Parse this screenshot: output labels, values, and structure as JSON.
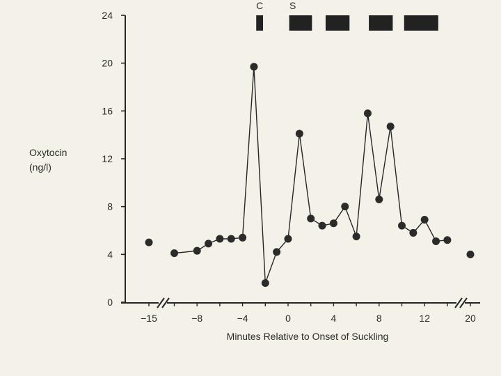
{
  "chart_data": {
    "type": "line",
    "xlabel": "Minutes Relative to Onset of Suckling",
    "ylabel_line1": "Oxytocin",
    "ylabel_line2": "(ng/l)",
    "ylim": [
      0,
      24
    ],
    "yticks": [
      0,
      4,
      8,
      12,
      16,
      20,
      24
    ],
    "xticks": [
      "-15",
      "-8",
      "-4",
      "0",
      "4",
      "8",
      "12",
      "20"
    ],
    "axis_breaks": [
      "between -15 and -8",
      "between 12 and 20"
    ],
    "isolated_points": [
      {
        "x": -15,
        "y": 5.0
      },
      {
        "x": 20,
        "y": 4.0
      }
    ],
    "series": [
      {
        "x": [
          -10,
          -8,
          -7,
          -6,
          -5,
          -4,
          -3,
          -2,
          -1,
          0,
          1,
          2,
          3,
          4,
          5,
          6,
          7,
          8,
          9,
          10,
          11,
          12,
          13,
          14
        ],
        "values": [
          4.1,
          4.3,
          4.9,
          5.3,
          5.3,
          5.4,
          19.7,
          1.6,
          4.2,
          5.3,
          14.1,
          7.0,
          6.4,
          6.6,
          8.0,
          5.5,
          15.8,
          8.6,
          14.7,
          6.4,
          5.8,
          6.9,
          5.1,
          5.2
        ]
      }
    ],
    "bars": [
      {
        "label": "C",
        "x_start": -2.8,
        "x_end": -2.2
      },
      {
        "label": "S",
        "x_start": 0.1,
        "x_end": 2.1
      },
      {
        "label": "",
        "x_start": 3.3,
        "x_end": 5.4
      },
      {
        "label": "",
        "x_start": 7.1,
        "x_end": 9.2
      },
      {
        "label": "",
        "x_start": 10.2,
        "x_end": 13.2
      }
    ],
    "grid": false,
    "legend": "none"
  }
}
